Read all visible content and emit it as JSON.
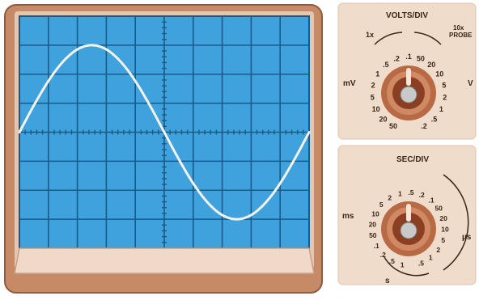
{
  "screen": {
    "colors": {
      "bezel": "#c68a67",
      "bezel_edge": "#8f5b3e",
      "screen_blue": "#3fa2dc",
      "grid": "#1b5a86",
      "trace": "#f4f2ea"
    },
    "trace": {
      "amplitude_divisions": 3,
      "period_divisions": 10,
      "phase": "sine"
    }
  },
  "volts_div": {
    "title": "VOLTS/DIV",
    "label_1x": "1x",
    "label_10x": "10x",
    "label_probe": "PROBE",
    "unit_left": "mV",
    "unit_right": "V",
    "ticks": [
      "50",
      "20",
      "10",
      "5",
      "2",
      "1",
      ".5",
      ".2",
      ".1",
      "50",
      "20",
      "10",
      "5",
      "2",
      "1",
      ".5",
      ".2"
    ]
  },
  "sec_div": {
    "title": "SEC/DIV",
    "unit_left": "ms",
    "unit_right": "µs",
    "unit_bottom": "s",
    "ticks": [
      "1",
      ".5",
      ".2",
      ".1",
      "50",
      "20",
      "10",
      "5",
      "2",
      "1",
      ".5",
      ".2",
      ".1",
      "50",
      "20",
      "10",
      "5",
      "2",
      "1",
      ".5"
    ]
  },
  "colors": {
    "panel": "#f0dccb",
    "panel_border": "#e2c4ac",
    "knob_outer": "#b86a45",
    "knob_inner": "#8a3f23",
    "knob_cap": "#c9c9c9"
  }
}
